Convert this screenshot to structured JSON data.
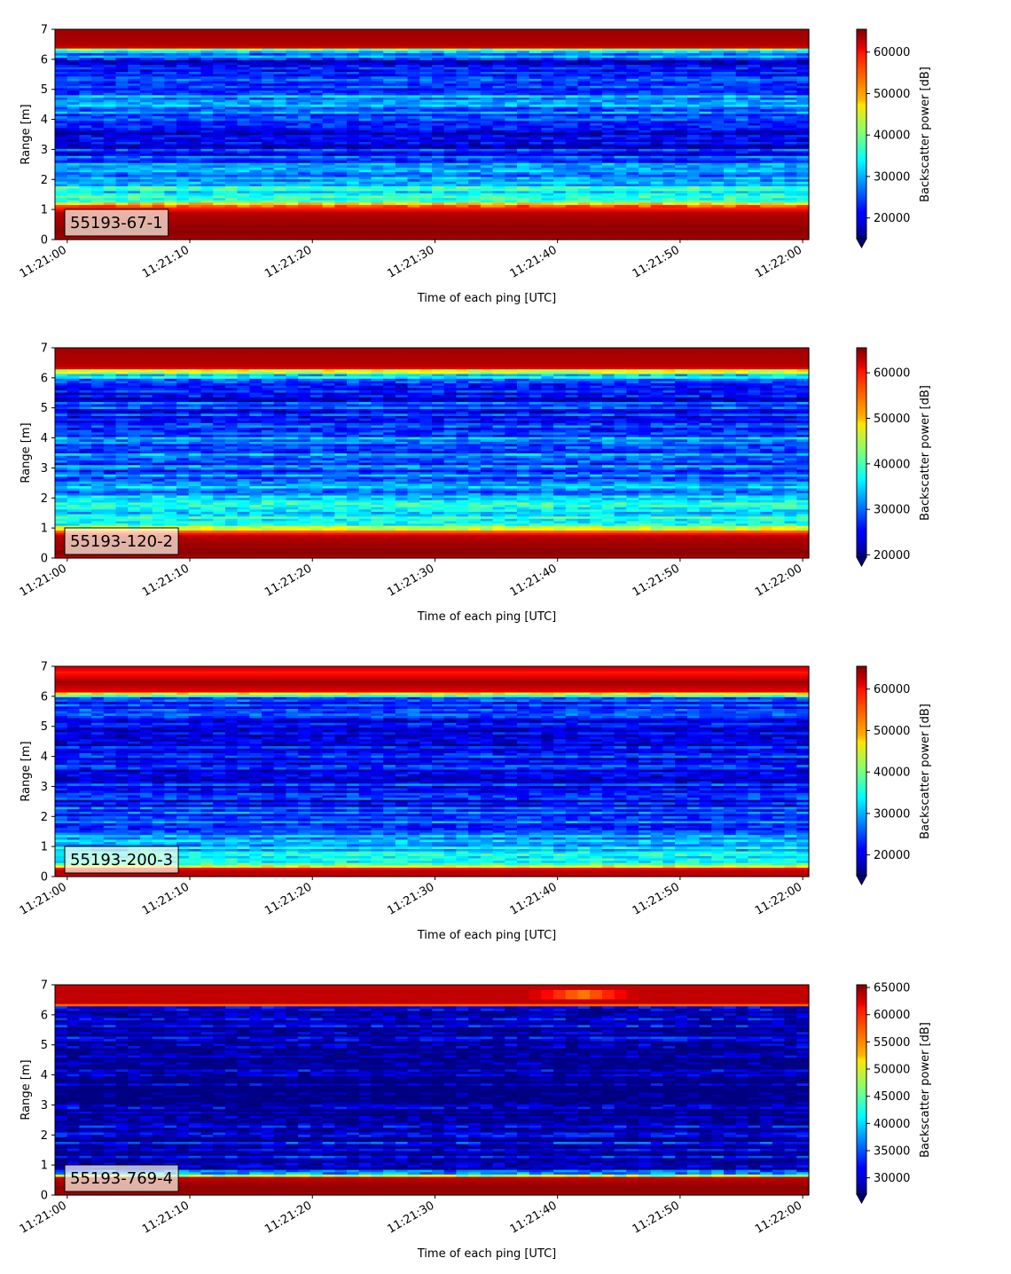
{
  "chart_data": [
    {
      "type": "heatmap",
      "label": "55193-67-1",
      "xlabel": "Time of each ping [UTC]",
      "ylabel": "Range [m]",
      "x_ticks": [
        "11:21:00",
        "11:21:10",
        "11:21:20",
        "11:21:30",
        "11:21:40",
        "11:21:50",
        "11:22:00"
      ],
      "xlim_seconds": [
        -1,
        60.5
      ],
      "ylim": [
        0,
        7
      ],
      "y_ticks": [
        0,
        1,
        2,
        3,
        4,
        5,
        6,
        7
      ],
      "colorbar": {
        "label": "Backscatter power [dB]",
        "range": [
          15000,
          65500
        ],
        "ticks": [
          20000,
          30000,
          40000,
          50000,
          60000
        ]
      },
      "profile": [
        [
          0.0,
          63000
        ],
        [
          0.25,
          65000
        ],
        [
          0.9,
          63000
        ],
        [
          1.15,
          54000
        ],
        [
          1.3,
          36000
        ],
        [
          1.8,
          34000
        ],
        [
          2.3,
          27000
        ],
        [
          2.9,
          24000
        ],
        [
          3.3,
          17000
        ],
        [
          3.9,
          24000
        ],
        [
          4.5,
          30000
        ],
        [
          5.0,
          26000
        ],
        [
          5.5,
          24000
        ],
        [
          6.0,
          21000
        ],
        [
          6.25,
          33000
        ],
        [
          6.38,
          45000
        ],
        [
          6.42,
          63000
        ],
        [
          7.0,
          64000
        ]
      ],
      "annotations": [],
      "seed": 11
    },
    {
      "type": "heatmap",
      "label": "55193-120-2",
      "xlabel": "Time of each ping [UTC]",
      "ylabel": "Range [m]",
      "x_ticks": [
        "11:21:00",
        "11:21:10",
        "11:21:20",
        "11:21:30",
        "11:21:40",
        "11:21:50",
        "11:22:00"
      ],
      "xlim_seconds": [
        -1,
        60.5
      ],
      "ylim": [
        0,
        7
      ],
      "y_ticks": [
        0,
        1,
        2,
        3,
        4,
        5,
        6,
        7
      ],
      "colorbar": {
        "label": "Backscatter power [dB]",
        "range": [
          19500,
          65500
        ],
        "ticks": [
          20000,
          30000,
          40000,
          50000,
          60000
        ]
      },
      "profile": [
        [
          0.0,
          63000
        ],
        [
          0.2,
          65000
        ],
        [
          0.75,
          63000
        ],
        [
          0.95,
          52000
        ],
        [
          1.1,
          40000
        ],
        [
          1.6,
          37000
        ],
        [
          2.2,
          33000
        ],
        [
          3.0,
          29000
        ],
        [
          4.0,
          30000
        ],
        [
          5.0,
          27000
        ],
        [
          5.9,
          25000
        ],
        [
          6.1,
          37000
        ],
        [
          6.25,
          46000
        ],
        [
          6.35,
          63000
        ],
        [
          7.0,
          64000
        ]
      ],
      "annotations": [],
      "seed": 23
    },
    {
      "type": "heatmap",
      "label": "55193-200-3",
      "xlabel": "Time of each ping [UTC]",
      "ylabel": "Range [m]",
      "x_ticks": [
        "11:21:00",
        "11:21:10",
        "11:21:20",
        "11:21:30",
        "11:21:40",
        "11:21:50",
        "11:22:00"
      ],
      "xlim_seconds": [
        -1,
        60.5
      ],
      "ylim": [
        0,
        7
      ],
      "y_ticks": [
        0,
        1,
        2,
        3,
        4,
        5,
        6,
        7
      ],
      "colorbar": {
        "label": "Backscatter power [dB]",
        "range": [
          15000,
          65500
        ],
        "ticks": [
          20000,
          30000,
          40000,
          50000,
          60000
        ]
      },
      "profile": [
        [
          0.0,
          62000
        ],
        [
          0.2,
          63000
        ],
        [
          0.3,
          58000
        ],
        [
          0.45,
          36000
        ],
        [
          1.0,
          32000
        ],
        [
          1.5,
          26000
        ],
        [
          2.5,
          22000
        ],
        [
          4.0,
          21000
        ],
        [
          5.5,
          22000
        ],
        [
          5.9,
          23000
        ],
        [
          6.05,
          36000
        ],
        [
          6.15,
          60000
        ],
        [
          6.5,
          64000
        ],
        [
          6.8,
          58000
        ],
        [
          7.0,
          62000
        ]
      ],
      "annotations": [],
      "seed": 37
    },
    {
      "type": "heatmap",
      "label": "55193-769-4",
      "xlabel": "Time of each ping [UTC]",
      "ylabel": "Range [m]",
      "x_ticks": [
        "11:21:00",
        "11:21:10",
        "11:21:20",
        "11:21:30",
        "11:21:40",
        "11:21:50",
        "11:22:00"
      ],
      "xlim_seconds": [
        -1,
        60.5
      ],
      "ylim": [
        0,
        7
      ],
      "y_ticks": [
        0,
        1,
        2,
        3,
        4,
        5,
        6,
        7
      ],
      "colorbar": {
        "label": "Backscatter power [dB]",
        "range": [
          27000,
          65500
        ],
        "ticks": [
          30000,
          35000,
          40000,
          45000,
          50000,
          55000,
          60000,
          65000
        ]
      },
      "profile": [
        [
          0.0,
          64000
        ],
        [
          0.25,
          65000
        ],
        [
          0.6,
          63000
        ],
        [
          0.7,
          38000
        ],
        [
          0.85,
          31000
        ],
        [
          1.5,
          30000
        ],
        [
          2.5,
          29000
        ],
        [
          4.0,
          28000
        ],
        [
          6.2,
          28000
        ],
        [
          6.3,
          36000
        ],
        [
          6.35,
          63000
        ],
        [
          7.0,
          63000
        ]
      ],
      "annotations": [
        {
          "t0": 37,
          "t1": 47,
          "y0": 6.5,
          "y1": 6.85,
          "peak": 56000
        }
      ],
      "seed": 53
    }
  ]
}
